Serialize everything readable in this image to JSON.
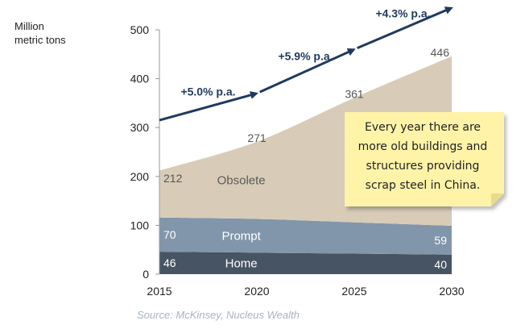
{
  "chart_data": {
    "type": "area",
    "ylabel": "Million metric tons",
    "ylim": [
      0,
      500
    ],
    "yticks": [
      "0",
      "100",
      "200",
      "300",
      "400",
      "500"
    ],
    "x": [
      2015,
      2020,
      2025,
      2030
    ],
    "xticks": [
      "2015",
      "2020",
      "2025",
      "2030"
    ],
    "stacked": true,
    "grid": false,
    "series": [
      {
        "name": "Home",
        "values": [
          46,
          44,
          42,
          40
        ],
        "color": "#465463",
        "label_color": "#ffffff"
      },
      {
        "name": "Prompt",
        "values": [
          70,
          69,
          64,
          59
        ],
        "color": "#8196aa",
        "label_color": "#ffffff"
      },
      {
        "name": "Obsolete",
        "values": [
          96,
          158,
          255,
          347
        ],
        "color": "#d8ccb8",
        "label_color": "#5a5a5a"
      }
    ],
    "value_labels": [
      {
        "series": "Home",
        "x": 2015,
        "text": "46"
      },
      {
        "series": "Home",
        "x": 2030,
        "text": "40"
      },
      {
        "series": "Prompt",
        "x": 2015,
        "text": "70"
      },
      {
        "series": "Prompt",
        "x": 2030,
        "text": "59"
      },
      {
        "series": "Total",
        "x": 2015,
        "text": "212"
      },
      {
        "series": "Total",
        "x": 2020,
        "text": "271"
      },
      {
        "series": "Total",
        "x": 2025,
        "text": "361"
      },
      {
        "series": "Total",
        "x": 2030,
        "text": "446"
      }
    ],
    "growth_arrows": [
      {
        "label": "+5.0% p.a.",
        "from": [
          2015,
          315
        ],
        "to": [
          2020,
          370
        ]
      },
      {
        "label": "+5.9% p.a.",
        "from": [
          2020,
          370
        ],
        "to": [
          2025,
          460
        ]
      },
      {
        "label": "+4.3% p.a.",
        "from": [
          2025,
          460
        ],
        "to": [
          2030,
          545
        ]
      }
    ],
    "arrow_color": "#1f3a5f"
  },
  "note": {
    "lines": [
      "Every year there are",
      "more old buildings and",
      "structures providing",
      "scrap steel in China."
    ],
    "background": "#fff3a8"
  },
  "source": "Source: McKinsey, Nucleus Wealth"
}
